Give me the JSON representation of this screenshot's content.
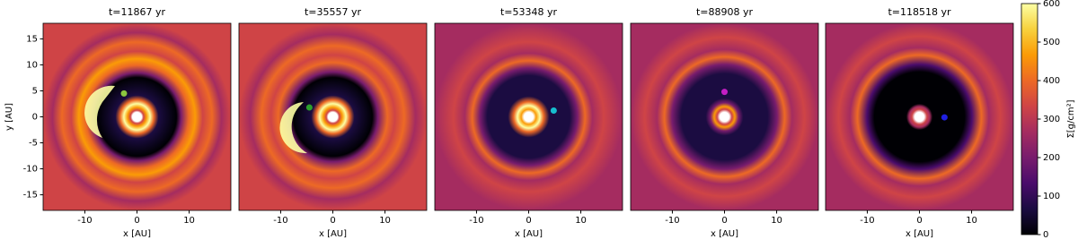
{
  "chart_data": [
    {
      "type": "scatter",
      "title": "t=11867 yr",
      "x_label": "x [AU]",
      "y_label": "y [AU]",
      "xlim": [
        -18,
        18
      ],
      "ylim": [
        -18,
        18
      ],
      "xticks": [
        -10,
        0,
        10
      ],
      "yticks": [
        -15,
        -10,
        -5,
        0,
        5,
        10,
        15
      ],
      "x": [
        -2.5
      ],
      "values": [
        4.5
      ],
      "color": "#8cc63f"
    },
    {
      "type": "scatter",
      "title": "t=35557 yr",
      "x_label": "x [AU]",
      "xlim": [
        -18,
        18
      ],
      "ylim": [
        -18,
        18
      ],
      "xticks": [
        -10,
        0,
        10
      ],
      "x": [
        -4.5
      ],
      "values": [
        1.8
      ],
      "color": "#2ca02c"
    },
    {
      "type": "scatter",
      "title": "t=53348 yr",
      "x_label": "x [AU]",
      "xlim": [
        -18,
        18
      ],
      "ylim": [
        -18,
        18
      ],
      "xticks": [
        -10,
        0,
        10
      ],
      "x": [
        4.8
      ],
      "values": [
        1.2
      ],
      "color": "#17becf"
    },
    {
      "type": "scatter",
      "title": "t=88908 yr",
      "x_label": "x [AU]",
      "xlim": [
        -18,
        18
      ],
      "ylim": [
        -18,
        18
      ],
      "xticks": [
        -10,
        0,
        10
      ],
      "x": [
        0
      ],
      "values": [
        4.8
      ],
      "color": "#c41ec4"
    },
    {
      "type": "scatter",
      "title": "t=118518 yr",
      "x_label": "x [AU]",
      "xlim": [
        -18,
        18
      ],
      "ylim": [
        -18,
        18
      ],
      "xticks": [
        -10,
        0,
        10
      ],
      "x": [
        4.8
      ],
      "values": [
        -0.1
      ],
      "color": "#1f1fe0"
    },
    {
      "type": "colorbar",
      "label": "Σ[g/cm²]",
      "ylim": [
        0,
        600
      ],
      "yticks": [
        0,
        100,
        200,
        300,
        400,
        500,
        600
      ],
      "colors": [
        "#000004",
        "#1b0c41",
        "#4a0c6b",
        "#781c6d",
        "#a52c60",
        "#cf4446",
        "#ed6925",
        "#fb9b06",
        "#f7d13d",
        "#fcffa4"
      ]
    }
  ]
}
